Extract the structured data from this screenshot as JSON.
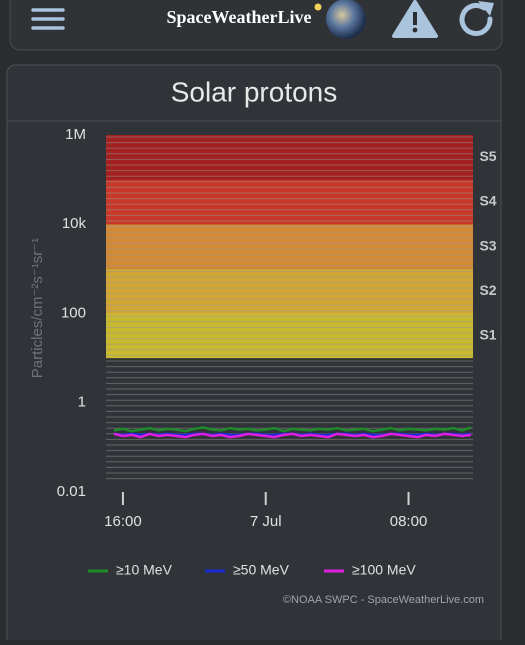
{
  "header": {
    "title": "SpaceWeatherLive"
  },
  "chart_data": {
    "type": "line",
    "title": "Solar protons",
    "y_label": "Particles/cm⁻²s⁻¹sr⁻¹",
    "log_y": true,
    "ylim": [
      0.01,
      1000000
    ],
    "yticks": [
      {
        "value": 1000000,
        "label": "1M"
      },
      {
        "value": 10000,
        "label": "10k"
      },
      100,
      1,
      0.01
    ],
    "categories": [
      null,
      "16:00",
      null,
      null,
      null,
      null,
      null,
      null,
      null,
      null,
      null,
      null,
      null,
      null,
      null,
      null,
      null,
      "7 Jul",
      null,
      null,
      null,
      null,
      null,
      null,
      null,
      null,
      null,
      null,
      null,
      null,
      null,
      null,
      null,
      "08:00",
      null,
      null,
      null,
      null,
      null,
      null,
      null
    ],
    "bands": [
      {
        "label": "S1",
        "from": 10,
        "to": 100,
        "color": "#c9b92f"
      },
      {
        "label": "S2",
        "from": 100,
        "to": 1000,
        "color": "#d2a635"
      },
      {
        "label": "S3",
        "from": 1000,
        "to": 10000,
        "color": "#d48a35"
      },
      {
        "label": "S4",
        "from": 10000,
        "to": 100000,
        "color": "#c8382a"
      },
      {
        "label": "S5",
        "from": 100000,
        "to": 1000000,
        "color": "#a32020"
      }
    ],
    "series": [
      {
        "name": "≥10 MeV",
        "color": "#1e8a2a",
        "values": [
          0.24,
          0.26,
          0.23,
          0.25,
          0.27,
          0.24,
          0.26,
          0.25,
          0.23,
          0.26,
          0.28,
          0.25,
          0.24,
          0.27,
          0.25,
          0.26,
          0.24,
          0.25,
          0.27,
          0.23,
          0.26,
          0.25,
          0.24,
          0.26,
          0.25,
          0.27,
          0.24,
          0.25,
          0.26,
          0.23,
          0.25,
          0.27,
          0.24,
          0.26,
          0.25,
          0.24,
          0.26,
          0.25,
          0.27,
          0.24,
          0.28
        ]
      },
      {
        "name": "≥50 MeV",
        "color": "#1a2bd6",
        "values": [
          0.2,
          0.19,
          0.2,
          0.19,
          0.2,
          0.19,
          0.2,
          0.19,
          0.19,
          0.2,
          0.2,
          0.19,
          0.2,
          0.19,
          0.19,
          0.2,
          0.2,
          0.19,
          0.19,
          0.2,
          0.2,
          0.19,
          0.2,
          0.19,
          0.19,
          0.2,
          0.2,
          0.19,
          0.2,
          0.19,
          0.19,
          0.2,
          0.2,
          0.19,
          0.19,
          0.2,
          0.19,
          0.2,
          0.2,
          0.19,
          0.2
        ]
      },
      {
        "name": "≥100 MeV",
        "color": "#e01ee0",
        "values": [
          0.2,
          0.18,
          0.19,
          0.17,
          0.2,
          0.18,
          0.19,
          0.18,
          0.17,
          0.19,
          0.2,
          0.18,
          0.19,
          0.17,
          0.18,
          0.2,
          0.19,
          0.18,
          0.17,
          0.19,
          0.2,
          0.18,
          0.19,
          0.18,
          0.17,
          0.2,
          0.19,
          0.18,
          0.19,
          0.17,
          0.18,
          0.2,
          0.19,
          0.18,
          0.17,
          0.19,
          0.18,
          0.2,
          0.19,
          0.18,
          0.19
        ]
      }
    ],
    "credit": "©NOAA SWPC - SpaceWeatherLive.com"
  }
}
